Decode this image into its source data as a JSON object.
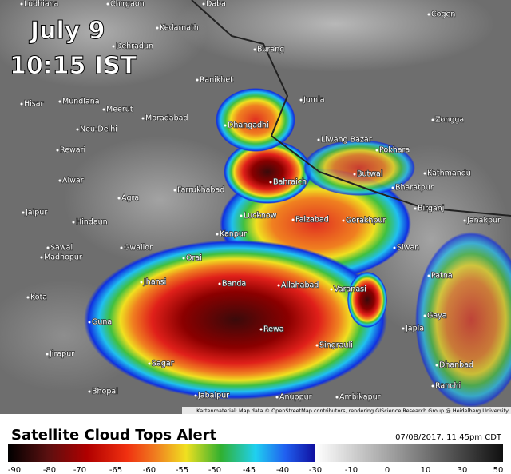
{
  "overlay": {
    "date": "July 9",
    "time": "10:15 IST"
  },
  "places": [
    "Ludhiana",
    "Chirgaon",
    "Daba",
    "Cogen",
    "Kedarnath",
    "Dehradun",
    "Burang",
    "Ranikhet",
    "Hisar",
    "Mundlana",
    "Meerut",
    "Jumla",
    "Moradabad",
    "Dhangadhi",
    "Zongga",
    "Neu-Delhi",
    "Liwang Bazar",
    "Pokhara",
    "Rewari",
    "Butwal",
    "Kathmandu",
    "Alwar",
    "Bahraich",
    "Farrukhabad",
    "Bharatpur",
    "Agra",
    "Birganj",
    "Jaipur",
    "Lucknow",
    "Faizabad",
    "Gorakhpur",
    "Hindaun",
    "Janakpur",
    "Kanpur",
    "Sawai",
    "Madhopur",
    "Gwalior",
    "Siwan",
    "Orai",
    "Patna",
    "Jhansi",
    "Banda",
    "Allahabad",
    "Varanasi",
    "Kota",
    "Gaya",
    "Guna",
    "Rewa",
    "Japla",
    "Singrauli",
    "Jirapur",
    "Sagar",
    "Dhanbad",
    "Ranchi",
    "Bhopal",
    "Jabalpur",
    "Anuppur",
    "Ambikapur"
  ],
  "attribution": "Kartenmaterial: Map data © OpenStreetMap contributors, rendering GIScience Research Group @ Heidelberg University",
  "legend": {
    "title": "Satellite Cloud Tops Alert",
    "timestamp": "07/08/2017, 11:45pm CDT",
    "ticks": [
      -90,
      -80,
      -70,
      -65,
      -60,
      -55,
      -50,
      -45,
      -40,
      -30,
      -10,
      0,
      10,
      30,
      50
    ]
  }
}
